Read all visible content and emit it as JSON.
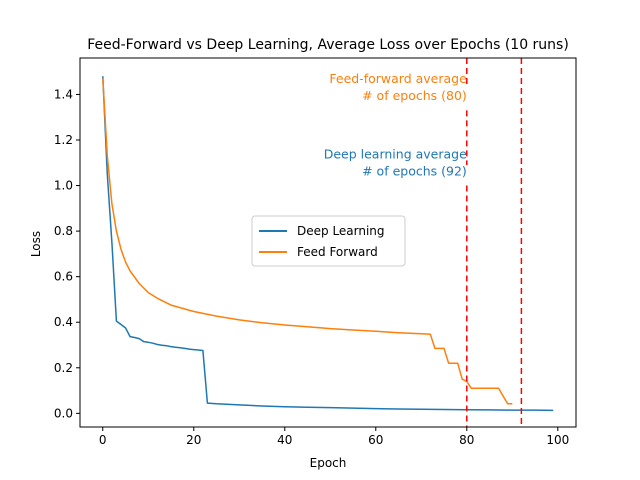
{
  "chart_data": {
    "type": "line",
    "title": "Feed-Forward vs Deep Learning, Average Loss over Epochs (10 runs)",
    "xlabel": "Epoch",
    "ylabel": "Loss",
    "xlim": [
      -5,
      104
    ],
    "ylim": [
      -0.06,
      1.56
    ],
    "xticks": [
      0,
      20,
      40,
      60,
      80,
      100
    ],
    "yticks": [
      0.0,
      0.2,
      0.4,
      0.6,
      0.8,
      1.0,
      1.2,
      1.4
    ],
    "ytick_labels": [
      "0.0",
      "0.2",
      "0.4",
      "0.6",
      "0.8",
      "1.0",
      "1.2",
      "1.4"
    ],
    "grid": false,
    "legend": "center",
    "series": [
      {
        "name": "Deep Learning",
        "color": "#1f77b4",
        "x": [
          0,
          1,
          2,
          3,
          4,
          5,
          6,
          7,
          8,
          9,
          10,
          11,
          12,
          13,
          14,
          15,
          16,
          17,
          18,
          19,
          20,
          21,
          22,
          23,
          25,
          30,
          35,
          40,
          45,
          50,
          55,
          60,
          65,
          70,
          75,
          80,
          85,
          90,
          95,
          99
        ],
        "y": [
          1.48,
          1.05,
          0.75,
          0.405,
          0.39,
          0.375,
          0.337,
          0.333,
          0.328,
          0.315,
          0.312,
          0.308,
          0.302,
          0.299,
          0.297,
          0.293,
          0.29,
          0.288,
          0.285,
          0.282,
          0.28,
          0.278,
          0.276,
          0.045,
          0.042,
          0.037,
          0.032,
          0.029,
          0.027,
          0.025,
          0.023,
          0.021,
          0.019,
          0.018,
          0.017,
          0.016,
          0.015,
          0.014,
          0.014,
          0.013
        ]
      },
      {
        "name": "Feed Forward",
        "color": "#ff7f0e",
        "x": [
          0,
          1,
          2,
          3,
          4,
          5,
          6,
          8,
          10,
          12,
          15,
          20,
          25,
          30,
          35,
          40,
          45,
          50,
          55,
          60,
          65,
          70,
          72,
          73,
          74,
          75,
          76,
          77,
          78,
          79,
          80,
          81,
          82,
          86,
          87,
          88,
          89,
          90
        ],
        "y": [
          1.47,
          1.13,
          0.92,
          0.8,
          0.72,
          0.665,
          0.625,
          0.57,
          0.53,
          0.505,
          0.475,
          0.447,
          0.427,
          0.41,
          0.398,
          0.388,
          0.38,
          0.372,
          0.366,
          0.36,
          0.354,
          0.349,
          0.347,
          0.285,
          0.285,
          0.285,
          0.22,
          0.22,
          0.22,
          0.15,
          0.14,
          0.11,
          0.11,
          0.11,
          0.11,
          0.075,
          0.042,
          0.042
        ]
      }
    ],
    "vlines": [
      {
        "x": 80,
        "color": "#ff0000",
        "style": "dashed"
      },
      {
        "x": 92,
        "color": "#ff0000",
        "style": "dashed"
      }
    ],
    "annotations": [
      {
        "text_lines": [
          "Feed-forward average",
          "# of epochs (80)"
        ],
        "color": "#ff7f0e",
        "x": 80,
        "y": 1.375
      },
      {
        "text_lines": [
          "Deep learning average",
          "# of epochs (92)"
        ],
        "color": "#1f77b4",
        "x": 80,
        "y": 1.045
      }
    ]
  }
}
